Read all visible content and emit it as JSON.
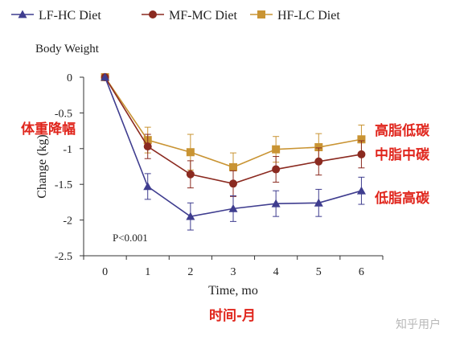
{
  "chart_data": {
    "type": "line",
    "title": "Body Weight",
    "xlabel": "Time, mo",
    "ylabel": "Change (kg)",
    "x": [
      0,
      1,
      2,
      3,
      4,
      5,
      6
    ],
    "xlim": [
      -0.5,
      6.5
    ],
    "ylim": [
      -2.5,
      0
    ],
    "yticks": [
      0,
      -0.5,
      -1,
      -1.5,
      -2,
      -2.5
    ],
    "ytick_labels": [
      "0",
      "-0.5",
      "-1",
      "-1.5",
      "-2",
      "-2.5"
    ],
    "xtick_labels": [
      "0",
      "1",
      "2",
      "3",
      "4",
      "5",
      "6"
    ],
    "legend_position": "top",
    "series": [
      {
        "name": "LF-HC Diet",
        "color": "#3f3d8f",
        "marker": "triangle",
        "values": [
          0,
          -1.53,
          -1.95,
          -1.84,
          -1.77,
          -1.76,
          -1.59
        ],
        "errors": [
          0,
          0.18,
          0.19,
          0.18,
          0.18,
          0.19,
          0.19
        ]
      },
      {
        "name": "MF-MC Diet",
        "color": "#8b2a20",
        "marker": "circle",
        "values": [
          0,
          -0.97,
          -1.36,
          -1.49,
          -1.29,
          -1.18,
          -1.08
        ],
        "errors": [
          0,
          0.17,
          0.19,
          0.18,
          0.18,
          0.19,
          0.19
        ]
      },
      {
        "name": "HF-LC Diet",
        "color": "#c99433",
        "marker": "square",
        "values": [
          0,
          -0.88,
          -1.05,
          -1.26,
          -1.01,
          -0.98,
          -0.87
        ],
        "errors": [
          0,
          0.18,
          0.25,
          0.2,
          0.18,
          0.19,
          0.2
        ]
      }
    ],
    "annotations": {
      "p_value": "P<0.001",
      "y_annotation": "体重降幅",
      "x_annotation": "时间-月",
      "label_hf": "高脂低碳",
      "label_mf": "中脂中碳",
      "label_lf": "低脂高碳",
      "annotation_color": "#e0251c"
    },
    "watermark": "知乎用户"
  }
}
